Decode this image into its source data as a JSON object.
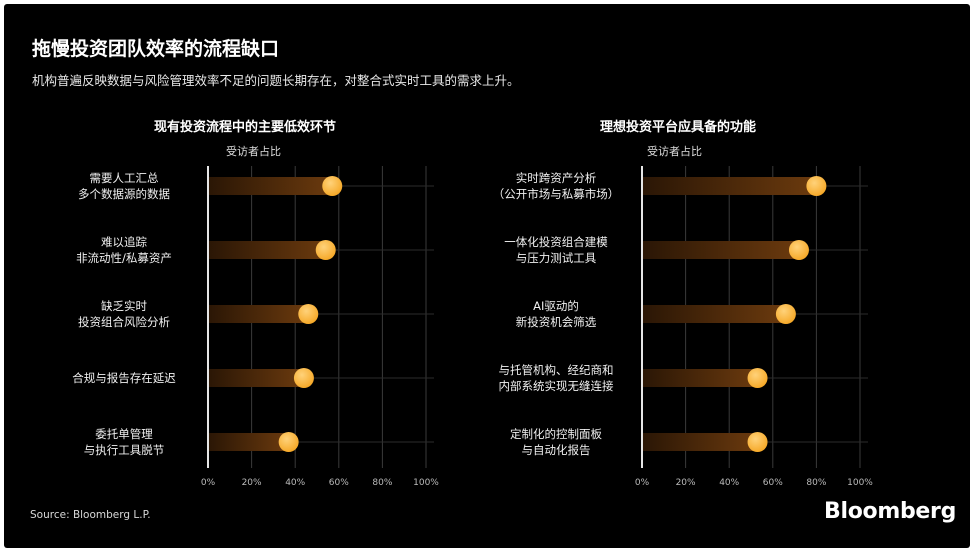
{
  "header": {
    "title": "拖慢投资团队效率的流程缺口",
    "subtitle": "机构普遍反映数据与风险管理效率不足的问题长期存在，对整合式实时工具的需求上升。"
  },
  "footer": {
    "source": "Source: Bloomberg L.P.",
    "brand": "Bloomberg"
  },
  "colors": {
    "background": "#000000",
    "bar": "#6b3a0e",
    "dot": "#f5a623",
    "grid": "#3a3a3a"
  },
  "chart_data": [
    {
      "type": "bar",
      "title": "现有投资流程中的主要低效环节",
      "xlabel": "受访者占比",
      "xlim": [
        0,
        100
      ],
      "ticks": [
        "0%",
        "20%",
        "40%",
        "60%",
        "80%",
        "100%"
      ],
      "categories": [
        [
          "需要人工汇总",
          "多个数据源的数据"
        ],
        [
          "难以追踪",
          "非流动性/私募资产"
        ],
        [
          "缺乏实时",
          "投资组合风险分析"
        ],
        [
          "合规与报告存在延迟"
        ],
        [
          "委托单管理",
          "与执行工具脱节"
        ]
      ],
      "values": [
        57,
        54,
        46,
        44,
        37
      ]
    },
    {
      "type": "bar",
      "title": "理想投资平台应具备的功能",
      "xlabel": "受访者占比",
      "xlim": [
        0,
        100
      ],
      "ticks": [
        "0%",
        "20%",
        "40%",
        "60%",
        "80%",
        "100%"
      ],
      "categories": [
        [
          "实时跨资产分析",
          "（公开市场与私募市场）"
        ],
        [
          "一体化投资组合建模",
          "与压力测试工具"
        ],
        [
          "AI驱动的",
          "新投资机会筛选"
        ],
        [
          "与托管机构、经纪商和",
          "内部系统实现无缝连接"
        ],
        [
          "定制化的控制面板",
          "与自动化报告"
        ]
      ],
      "values": [
        80,
        72,
        66,
        53,
        53
      ]
    }
  ]
}
